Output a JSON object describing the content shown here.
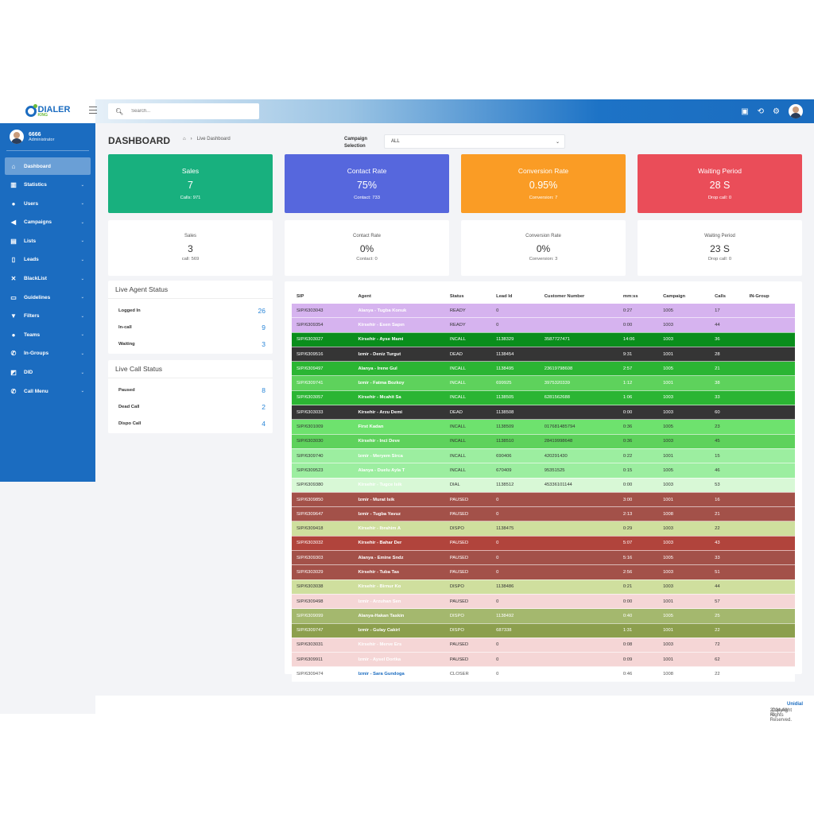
{
  "brand": {
    "name": "DIALER",
    "sub": "KING"
  },
  "user": {
    "name": "6666",
    "role": "Administrator"
  },
  "nav": [
    {
      "label": "Dashboard",
      "icon": "home-icon",
      "glyph": "⌂",
      "chevron": false,
      "active": true
    },
    {
      "label": "Statistics",
      "icon": "bar-chart-icon",
      "glyph": "▥",
      "chevron": true
    },
    {
      "label": "Users",
      "icon": "user-icon",
      "glyph": "●",
      "chevron": true
    },
    {
      "label": "Campaigns",
      "icon": "megaphone-icon",
      "glyph": "◀",
      "chevron": true
    },
    {
      "label": "Lists",
      "icon": "list-icon",
      "glyph": "▤",
      "chevron": true
    },
    {
      "label": "Leads",
      "icon": "file-icon",
      "glyph": "▯",
      "chevron": true
    },
    {
      "label": "BlackList",
      "icon": "phone-slash-icon",
      "glyph": "✕",
      "chevron": true
    },
    {
      "label": "Guidelines",
      "icon": "card-icon",
      "glyph": "▭",
      "chevron": true
    },
    {
      "label": "Filters",
      "icon": "filter-icon",
      "glyph": "▼",
      "chevron": true
    },
    {
      "label": "Teams",
      "icon": "users-icon",
      "glyph": "●",
      "chevron": true
    },
    {
      "label": "In-Groups",
      "icon": "phone-icon",
      "glyph": "✆",
      "chevron": true
    },
    {
      "label": "DID",
      "icon": "chart-square-icon",
      "glyph": "◩",
      "chevron": true
    },
    {
      "label": "Call Menu",
      "icon": "phone-volume-icon",
      "glyph": "✆",
      "chevron": true
    }
  ],
  "search": {
    "placeholder": "Search..."
  },
  "page": {
    "title": "DASHBOARD",
    "breadcrumb": "Live Dashboard"
  },
  "campaign": {
    "label": "Campaign Selection",
    "value": "ALL"
  },
  "top_cards": [
    {
      "title": "Sales",
      "value": "7",
      "sub": "Calls: 971",
      "color": "#18b07e"
    },
    {
      "title": "Contact Rate",
      "value": "75%",
      "sub": "Contact: 733",
      "color": "#5667dd"
    },
    {
      "title": "Conversion Rate",
      "value": "0.95%",
      "sub": "Conversion: 7",
      "color": "#fa9c25"
    },
    {
      "title": "Waiting Period",
      "value": "28 S",
      "sub": "Drop call: 0",
      "color": "#ea4d59"
    }
  ],
  "sub_cards": [
    {
      "title": "Sales",
      "value": "3",
      "sub": "call: 569"
    },
    {
      "title": "Contact Rate",
      "value": "0%",
      "sub": "Contact: 0"
    },
    {
      "title": "Conversion Rate",
      "value": "0%",
      "sub": "Conversion: 3"
    },
    {
      "title": "Waiting Period",
      "value": "23 S",
      "sub": "Drop call: 0"
    }
  ],
  "agent_status": {
    "title": "Live Agent Status",
    "rows": [
      {
        "label": "Logged In",
        "value": "26"
      },
      {
        "label": "In-call",
        "value": "9"
      },
      {
        "label": "Waiting",
        "value": "3"
      }
    ]
  },
  "call_status": {
    "title": "Live Call Status",
    "rows": [
      {
        "label": "Paused",
        "value": "8"
      },
      {
        "label": "Dead Call",
        "value": "2"
      },
      {
        "label": "Dispo Call",
        "value": "4"
      }
    ]
  },
  "table": {
    "headers": [
      "SIP",
      "Agent",
      "Status",
      "Lead Id",
      "Customer Number",
      "mm:ss",
      "Campaign",
      "Calls",
      "IN-Group"
    ],
    "rows": [
      {
        "bg": "#d6b3ef",
        "fg": "#333",
        "agent_fg": "#ffffff",
        "cells": [
          "SIP/6303043",
          "Alanya - Tugba Konuk",
          "READY",
          "0",
          "",
          "0:27",
          "1005",
          "17",
          ""
        ]
      },
      {
        "bg": "#d6b3ef",
        "fg": "#333",
        "agent_fg": "#ffffff",
        "cells": [
          "SIP/6309354",
          "Kirsehir - Esen Sapın",
          "READY",
          "0",
          "",
          "0:00",
          "1003",
          "44",
          ""
        ]
      },
      {
        "bg": "#0a8e1c",
        "fg": "#ffffff",
        "agent_fg": "#ffffff",
        "cells": [
          "SIP/6303027",
          "Kirsehir - Ayse Mami",
          "INCALL",
          "1138329",
          "3587727471",
          "14:06",
          "1003",
          "36",
          ""
        ]
      },
      {
        "bg": "#353535",
        "fg": "#ffffff",
        "agent_fg": "#ffffff",
        "cells": [
          "SIP/6309516",
          "Izmir - Deniz Turgut",
          "DEAD",
          "1138454",
          "",
          "9:31",
          "1001",
          "28",
          ""
        ]
      },
      {
        "bg": "#2bb533",
        "fg": "#ffffff",
        "agent_fg": "#ffffff",
        "cells": [
          "SIP/6309497",
          "Alanya - Irene Gul",
          "INCALL",
          "1138495",
          "23619798608",
          "2:57",
          "1005",
          "21",
          ""
        ]
      },
      {
        "bg": "#5ed25c",
        "fg": "#ffffff",
        "agent_fg": "#ffffff",
        "cells": [
          "SIP/6309741",
          "Izmir - Fatma Bozkoy",
          "INCALL",
          "699925",
          "3975320339",
          "1:12",
          "1001",
          "38",
          ""
        ]
      },
      {
        "bg": "#2bb533",
        "fg": "#ffffff",
        "agent_fg": "#ffffff",
        "cells": [
          "SIP/6303057",
          "Kirsehir - Mcahit Sa",
          "INCALL",
          "1138505",
          "6281562688",
          "1:06",
          "1003",
          "33",
          ""
        ]
      },
      {
        "bg": "#353535",
        "fg": "#ffffff",
        "agent_fg": "#ffffff",
        "cells": [
          "SIP/6303033",
          "Kirsehir - Arzu Demi",
          "DEAD",
          "1138508",
          "",
          "0:00",
          "1003",
          "60",
          ""
        ]
      },
      {
        "bg": "#6ee26e",
        "fg": "#333",
        "agent_fg": "#ffffff",
        "cells": [
          "SIP/6301009",
          "First Kadan",
          "INCALL",
          "1138509",
          "017681485794",
          "0:36",
          "1005",
          "23",
          ""
        ]
      },
      {
        "bg": "#5ed25c",
        "fg": "#333",
        "agent_fg": "#ffffff",
        "cells": [
          "SIP/6303030",
          "Kirsehir - Inci Deve",
          "INCALL",
          "1138510",
          "28419998648",
          "0:36",
          "1003",
          "45",
          ""
        ]
      },
      {
        "bg": "#9ceea0",
        "fg": "#333",
        "agent_fg": "#ffffff",
        "cells": [
          "SIP/6309740",
          "Izmir - Meryem Sirca",
          "INCALL",
          "690406",
          "420291430",
          "0:22",
          "1001",
          "15",
          ""
        ]
      },
      {
        "bg": "#9ceea0",
        "fg": "#333",
        "agent_fg": "#ffffff",
        "cells": [
          "SIP/6309523",
          "Alanya - Duelu Ayla T",
          "INCALL",
          "670409",
          "95351525",
          "0:15",
          "1005",
          "46",
          ""
        ]
      },
      {
        "bg": "#d8f8d6",
        "fg": "#333",
        "agent_fg": "#ffffff",
        "cells": [
          "SIP/6309380",
          "Kirsehir - Tugce Isik",
          "DIAL",
          "1138512",
          "45336101144",
          "0:00",
          "1003",
          "53",
          ""
        ]
      },
      {
        "bg": "#a35149",
        "fg": "#ffffff",
        "agent_fg": "#ffffff",
        "cells": [
          "SIP/6309850",
          "Izmir - Murat Isik",
          "PAUSED",
          "0",
          "",
          "3:00",
          "1001",
          "16",
          ""
        ]
      },
      {
        "bg": "#a35149",
        "fg": "#ffffff",
        "agent_fg": "#ffffff",
        "cells": [
          "SIP/6309647",
          "Izmir - Tugba Yavuz",
          "PAUSED",
          "0",
          "",
          "2:13",
          "1008",
          "21",
          ""
        ]
      },
      {
        "bg": "#cfdf9e",
        "fg": "#333",
        "agent_fg": "#ffffff",
        "cells": [
          "SIP/6309418",
          "Kirsehir - Ibrahim A",
          "DISPO",
          "1138475",
          "",
          "0:29",
          "1003",
          "22",
          ""
        ]
      },
      {
        "bg": "#b1443c",
        "fg": "#ffffff",
        "agent_fg": "#ffffff",
        "cells": [
          "SIP/6303032",
          "Kirsehir - Bahar Der",
          "PAUSED",
          "0",
          "",
          "5:07",
          "1003",
          "43",
          ""
        ]
      },
      {
        "bg": "#a35149",
        "fg": "#ffffff",
        "agent_fg": "#ffffff",
        "cells": [
          "SIP/6309303",
          "Alanya - Emine Sndz",
          "PAUSED",
          "0",
          "",
          "5:16",
          "1005",
          "33",
          ""
        ]
      },
      {
        "bg": "#a35149",
        "fg": "#ffffff",
        "agent_fg": "#ffffff",
        "cells": [
          "SIP/6303029",
          "Kirsehir - Tuba Tas",
          "PAUSED",
          "0",
          "",
          "2:56",
          "1003",
          "51",
          ""
        ]
      },
      {
        "bg": "#cfdf9e",
        "fg": "#333",
        "agent_fg": "#ffffff",
        "cells": [
          "SIP/6303038",
          "Kirsehir - Birnur Ko",
          "DISPO",
          "1138486",
          "",
          "0:21",
          "1003",
          "44",
          ""
        ]
      },
      {
        "bg": "#f5d6d6",
        "fg": "#333",
        "agent_fg": "#ffffff",
        "cells": [
          "SIP/6309498",
          "Izmir - Arzuhan Sen",
          "PAUSED",
          "0",
          "",
          "0:00",
          "1001",
          "57",
          ""
        ]
      },
      {
        "bg": "#a4b86e",
        "fg": "#ffffff",
        "agent_fg": "#ffffff",
        "cells": [
          "SIP/6309099",
          "Alanya-Hakan Taskin",
          "DISPO",
          "1138492",
          "",
          "0:40",
          "1005",
          "25",
          ""
        ]
      },
      {
        "bg": "#8c9f4d",
        "fg": "#ffffff",
        "agent_fg": "#ffffff",
        "cells": [
          "SIP/6309747",
          "Izmir - Gulay Cakirl",
          "DISPO",
          "687338",
          "",
          "1:31",
          "1001",
          "22",
          ""
        ]
      },
      {
        "bg": "#f5d6d6",
        "fg": "#333",
        "agent_fg": "#ffffff",
        "cells": [
          "SIP/6303031",
          "Kirsehir - Merve Ers",
          "PAUSED",
          "0",
          "",
          "0:08",
          "1003",
          "72",
          ""
        ]
      },
      {
        "bg": "#f5d6d6",
        "fg": "#333",
        "agent_fg": "#ffffff",
        "cells": [
          "SIP/6309911",
          "Izmir - Aysel Dortka",
          "PAUSED",
          "0",
          "",
          "0:09",
          "1001",
          "62",
          ""
        ]
      },
      {
        "bg": "#ffffff",
        "fg": "#555",
        "agent_fg": "#1b6cc0",
        "cells": [
          "SIP/6309474",
          "Izmir - Sara Gundoga",
          "CLOSER",
          "0",
          "",
          "0:46",
          "1008",
          "22",
          ""
        ]
      }
    ]
  },
  "footer": {
    "prefix": "Copyright ©",
    "brand": "Unidial",
    "suffix": "2024 All Rights Reserved."
  }
}
